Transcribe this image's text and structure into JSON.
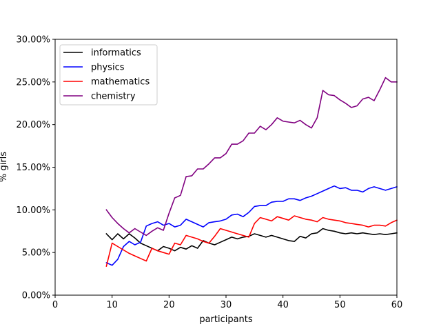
{
  "chart_data": {
    "type": "line",
    "title": "",
    "xlabel": "participants",
    "ylabel": "% girls",
    "xlim": [
      0,
      60
    ],
    "ylim": [
      0,
      0.3
    ],
    "x_ticks": [
      0,
      10,
      20,
      30,
      40,
      50,
      60
    ],
    "y_ticks": [
      0.0,
      0.05,
      0.1,
      0.15,
      0.2,
      0.25,
      0.3
    ],
    "x_tick_labels": [
      "0",
      "10",
      "20",
      "30",
      "40",
      "50",
      "60"
    ],
    "y_tick_labels": [
      "0.00%",
      "5.00%",
      "10.00%",
      "15.00%",
      "20.00%",
      "25.00%",
      "30.00%"
    ],
    "grid": false,
    "legend_position": "top-left",
    "x": [
      9,
      10,
      11,
      12,
      13,
      14,
      15,
      16,
      17,
      18,
      19,
      20,
      21,
      22,
      23,
      24,
      25,
      26,
      27,
      28,
      29,
      30,
      31,
      32,
      33,
      34,
      35,
      36,
      37,
      38,
      39,
      40,
      41,
      42,
      43,
      44,
      45,
      46,
      47,
      48,
      49,
      50,
      51,
      52,
      53,
      54,
      55,
      56,
      57,
      58,
      59,
      60
    ],
    "series": [
      {
        "name": "informatics",
        "color": "#000000",
        "values": [
          0.072,
          0.065,
          0.072,
          0.066,
          0.072,
          0.067,
          0.061,
          0.058,
          0.055,
          0.052,
          0.057,
          0.055,
          0.052,
          0.056,
          0.054,
          0.058,
          0.055,
          0.064,
          0.061,
          0.059,
          0.062,
          0.065,
          0.068,
          0.066,
          0.068,
          0.069,
          0.072,
          0.07,
          0.068,
          0.07,
          0.068,
          0.066,
          0.064,
          0.063,
          0.069,
          0.067,
          0.072,
          0.073,
          0.078,
          0.076,
          0.075,
          0.073,
          0.072,
          0.073,
          0.072,
          0.073,
          0.072,
          0.071,
          0.072,
          0.071,
          0.072,
          0.073
        ]
      },
      {
        "name": "physics",
        "color": "#0000ff",
        "values": [
          0.038,
          0.035,
          0.042,
          0.057,
          0.063,
          0.059,
          0.062,
          0.081,
          0.084,
          0.086,
          0.082,
          0.084,
          0.08,
          0.082,
          0.089,
          0.086,
          0.083,
          0.08,
          0.085,
          0.086,
          0.087,
          0.089,
          0.094,
          0.095,
          0.092,
          0.097,
          0.104,
          0.105,
          0.105,
          0.109,
          0.11,
          0.11,
          0.113,
          0.113,
          0.111,
          0.114,
          0.116,
          0.119,
          0.122,
          0.125,
          0.128,
          0.125,
          0.126,
          0.123,
          0.123,
          0.121,
          0.125,
          0.127,
          0.125,
          0.123,
          0.125,
          0.127
        ]
      },
      {
        "name": "mathematics",
        "color": "#ff0000",
        "values": [
          0.034,
          0.061,
          0.057,
          0.053,
          0.049,
          0.046,
          0.043,
          0.04,
          0.055,
          0.052,
          0.05,
          0.048,
          0.061,
          0.059,
          0.07,
          0.068,
          0.066,
          0.063,
          0.061,
          0.069,
          0.078,
          0.076,
          0.074,
          0.072,
          0.07,
          0.068,
          0.084,
          0.091,
          0.089,
          0.087,
          0.092,
          0.09,
          0.088,
          0.093,
          0.091,
          0.089,
          0.088,
          0.086,
          0.091,
          0.089,
          0.088,
          0.087,
          0.085,
          0.084,
          0.083,
          0.082,
          0.08,
          0.082,
          0.082,
          0.081,
          0.085,
          0.088
        ]
      },
      {
        "name": "chemistry",
        "color": "#800080",
        "values": [
          0.1,
          0.091,
          0.084,
          0.078,
          0.073,
          0.078,
          0.074,
          0.07,
          0.075,
          0.079,
          0.076,
          0.096,
          0.114,
          0.117,
          0.139,
          0.14,
          0.148,
          0.148,
          0.154,
          0.161,
          0.161,
          0.166,
          0.177,
          0.177,
          0.181,
          0.19,
          0.19,
          0.198,
          0.194,
          0.2,
          0.208,
          0.204,
          0.203,
          0.202,
          0.205,
          0.2,
          0.196,
          0.208,
          0.24,
          0.235,
          0.234,
          0.229,
          0.225,
          0.22,
          0.222,
          0.23,
          0.232,
          0.228,
          0.241,
          0.255,
          0.25,
          0.25
        ]
      }
    ]
  }
}
